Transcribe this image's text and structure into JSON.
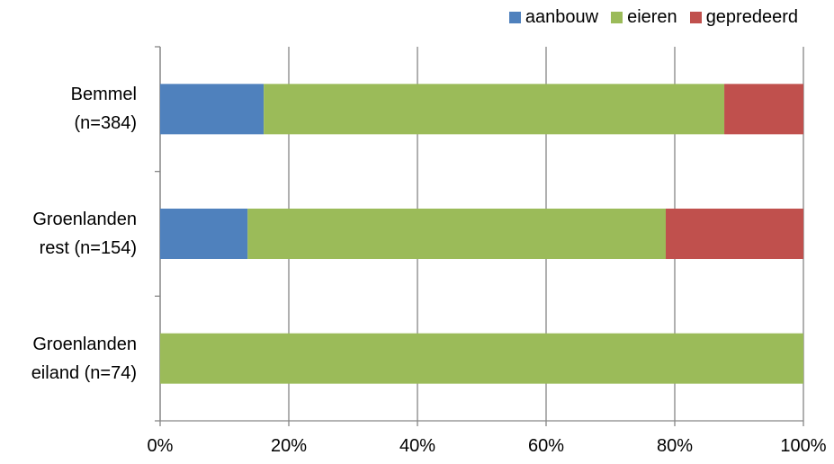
{
  "chart_data": {
    "type": "stacked-barh",
    "categories": [
      "Bemmel\n(n=384)",
      "Groenlanden\nrest (n=154)",
      "Groenlanden\neiland (n=74)"
    ],
    "series": [
      {
        "name": "aanbouw",
        "color": "#4f81bd",
        "values": [
          16.1,
          13.6,
          0
        ]
      },
      {
        "name": "eieren",
        "color": "#9bbb59",
        "values": [
          71.6,
          65,
          100
        ]
      },
      {
        "name": "gepredeerd",
        "color": "#c0504d",
        "values": [
          12.3,
          21.4,
          0
        ]
      }
    ],
    "xlim": [
      0,
      100
    ],
    "xticks": [
      {
        "value": 0,
        "label": "0%"
      },
      {
        "value": 20,
        "label": "20%"
      },
      {
        "value": 40,
        "label": "40%"
      },
      {
        "value": 60,
        "label": "60%"
      },
      {
        "value": 80,
        "label": "80%"
      },
      {
        "value": 100,
        "label": "100%"
      }
    ],
    "grid": true,
    "legend": "top-right"
  }
}
